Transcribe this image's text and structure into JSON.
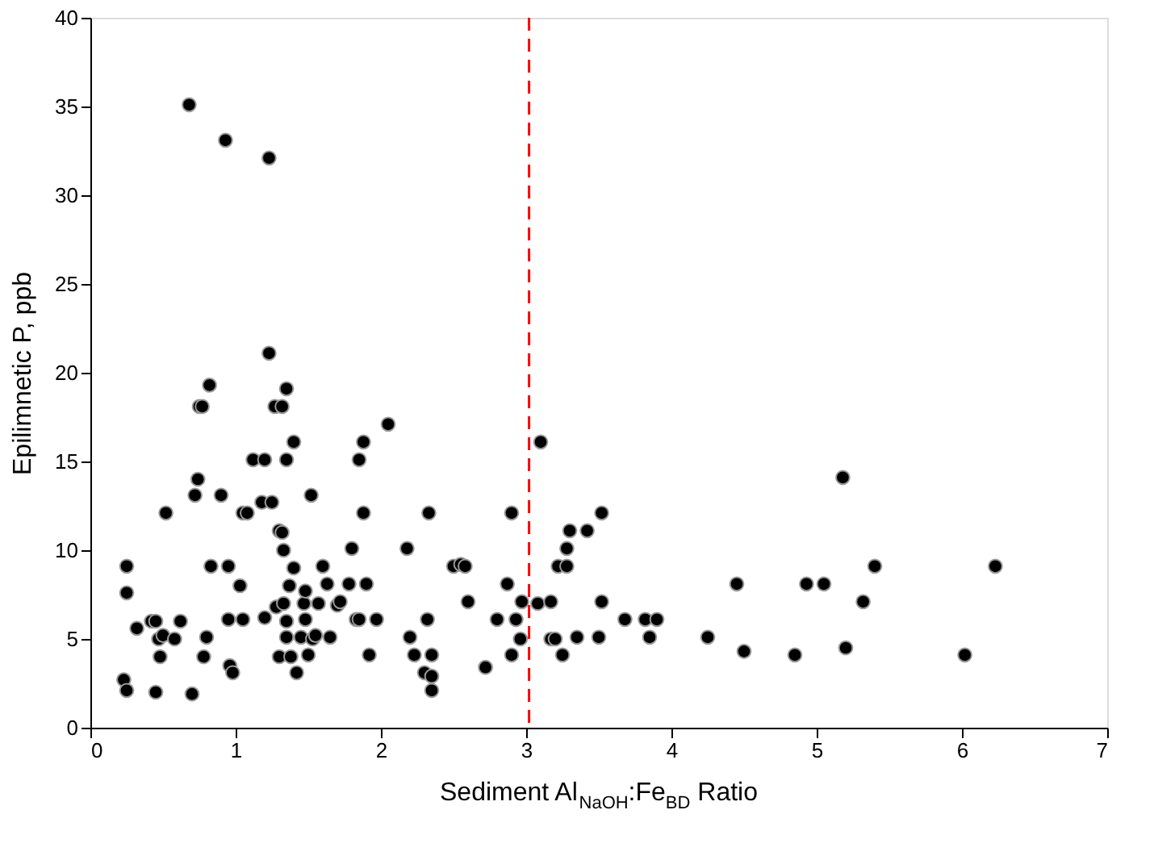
{
  "chart_data": {
    "type": "scatter",
    "xlabel": "Sediment Al$_{NaOH}$:Fe$_{BD}$ Ratio",
    "ylabel": "Epilimnetic P, ppb",
    "x": [
      0.23,
      0.25,
      0.25,
      0.25,
      0.32,
      0.42,
      0.45,
      0.45,
      0.47,
      0.48,
      0.5,
      0.52,
      0.58,
      0.62,
      0.68,
      0.7,
      0.72,
      0.74,
      0.75,
      0.77,
      0.78,
      0.8,
      0.82,
      0.83,
      0.9,
      0.93,
      0.95,
      0.95,
      0.96,
      0.98,
      1.03,
      1.05,
      1.08,
      1.05,
      1.12,
      1.2,
      1.18,
      1.2,
      1.23,
      1.23,
      1.25,
      1.27,
      1.28,
      1.3,
      1.3,
      1.32,
      1.32,
      1.33,
      1.33,
      1.35,
      1.35,
      1.37,
      1.35,
      1.35,
      1.38,
      1.4,
      1.4,
      1.42,
      1.45,
      1.47,
      1.48,
      1.48,
      1.5,
      1.52,
      1.53,
      1.55,
      1.57,
      1.6,
      1.63,
      1.65,
      1.7,
      1.72,
      1.78,
      1.8,
      1.85,
      1.83,
      1.85,
      1.88,
      1.88,
      1.9,
      1.92,
      1.97,
      2.05,
      2.18,
      2.2,
      2.23,
      2.3,
      2.33,
      2.32,
      2.35,
      2.35,
      2.35,
      2.5,
      2.55,
      2.58,
      2.6,
      2.72,
      2.8,
      2.87,
      2.9,
      2.9,
      2.93,
      2.96,
      2.97,
      3.08,
      3.1,
      3.17,
      3.17,
      3.2,
      3.22,
      3.25,
      3.28,
      3.28,
      3.3,
      3.35,
      3.42,
      3.52,
      3.52,
      3.5,
      3.68,
      3.82,
      3.85,
      3.9,
      4.25,
      4.45,
      4.5,
      4.85,
      4.93,
      5.05,
      5.18,
      5.2,
      5.32,
      5.4,
      6.02,
      6.23
    ],
    "values": [
      2.7,
      2.1,
      9.1,
      7.6,
      5.6,
      6.0,
      6.0,
      2.0,
      5.0,
      4.0,
      5.2,
      12.1,
      5.0,
      6.0,
      35.1,
      1.9,
      13.1,
      14.0,
      18.1,
      18.1,
      4.0,
      5.1,
      19.3,
      9.1,
      13.1,
      33.1,
      9.1,
      6.1,
      3.5,
      3.1,
      8.0,
      12.1,
      12.1,
      6.1,
      15.1,
      15.1,
      12.7,
      6.2,
      32.1,
      21.1,
      12.7,
      18.1,
      6.8,
      11.1,
      4.0,
      18.1,
      11.0,
      10.0,
      7.0,
      19.1,
      15.1,
      8.0,
      6.0,
      5.1,
      4.0,
      16.1,
      9.0,
      3.1,
      5.1,
      7.0,
      7.7,
      6.1,
      4.1,
      13.1,
      5.0,
      5.2,
      7.0,
      9.1,
      8.1,
      5.1,
      6.9,
      7.1,
      8.1,
      10.1,
      15.1,
      6.1,
      6.1,
      12.1,
      16.1,
      8.1,
      4.1,
      6.1,
      17.1,
      10.1,
      5.1,
      4.1,
      3.1,
      12.1,
      6.1,
      4.1,
      2.1,
      2.9,
      9.1,
      9.2,
      9.1,
      7.1,
      3.4,
      6.1,
      8.1,
      12.1,
      4.1,
      6.1,
      5.0,
      7.1,
      7.0,
      16.1,
      7.1,
      5.0,
      5.0,
      9.1,
      4.1,
      10.1,
      9.1,
      11.1,
      5.1,
      11.1,
      12.1,
      7.1,
      5.1,
      6.1,
      6.1,
      5.1,
      6.1,
      5.1,
      8.1,
      4.3,
      4.1,
      8.1,
      8.1,
      14.1,
      4.5,
      7.1,
      9.1,
      4.1,
      9.1
    ],
    "color": "#000000",
    "marker": "circle",
    "xlim": [
      0,
      7
    ],
    "xticks": [
      0,
      1,
      2,
      3,
      4,
      5,
      6,
      7
    ],
    "ylim": [
      0,
      40
    ],
    "yticks": [
      0,
      5,
      10,
      15,
      20,
      25,
      30,
      35,
      40
    ],
    "grid": false,
    "ref_lines": [
      {
        "axis": "x",
        "value": 3.02,
        "color": "#ff0000",
        "line_style": "dashed"
      }
    ]
  }
}
